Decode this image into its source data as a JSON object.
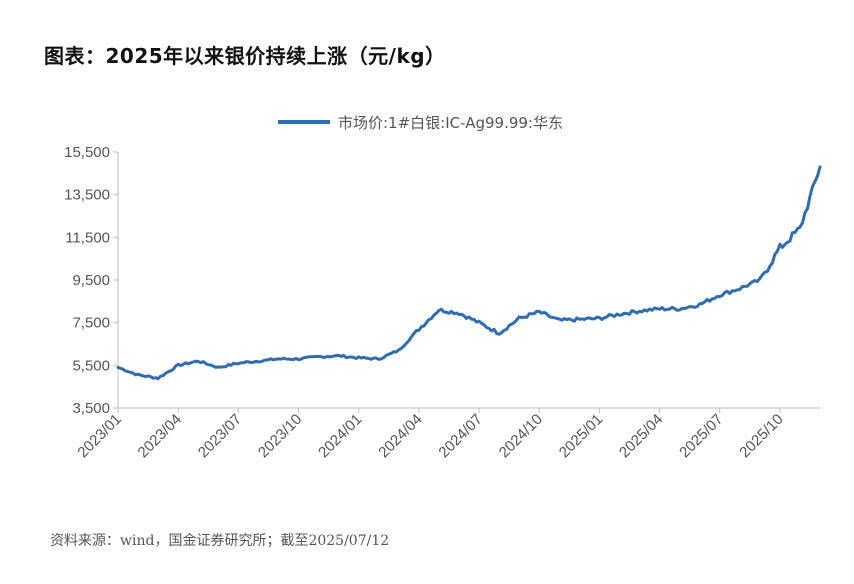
{
  "title": "图表：2025年以来银价持续上涨（元/kg）",
  "source": "资料来源：wind，国金证券研究所；截至2025/07/12",
  "colors": {
    "series": "#2e6db4",
    "axis": "#bfbfbf",
    "text": "#555555"
  },
  "chart_data": {
    "type": "line",
    "ylim": [
      3500,
      15500
    ],
    "yticks": [
      "3,500",
      "5,500",
      "7,500",
      "9,500",
      "11,500",
      "13,500",
      "15,500"
    ],
    "ytick_values": [
      3500,
      5500,
      7500,
      9500,
      11500,
      13500,
      15500
    ],
    "xticks": [
      "2023/01",
      "2023/04",
      "2023/07",
      "2023/10",
      "2024/01",
      "2024/04",
      "2024/07",
      "2024/10",
      "2025/01",
      "2025/04",
      "2025/07",
      "2025/10"
    ],
    "grid": false,
    "legend_position": "top-center",
    "series": [
      {
        "name": "市场价:1#白银:IC-Ag99.99:华东",
        "x": [
          "2023/01",
          "2023/02",
          "2023/03",
          "2023/04",
          "2023/05",
          "2023/06",
          "2023/07",
          "2023/08",
          "2023/09",
          "2023/10",
          "2023/11",
          "2023/12",
          "2024/01",
          "2024/02",
          "2024/03",
          "2024/04",
          "2024/05",
          "2024/06",
          "2024/07",
          "2024/08",
          "2024/09",
          "2024/10",
          "2024/11",
          "2024/12",
          "2025/01",
          "2025/02",
          "2025/03",
          "2025/04",
          "2025/05",
          "2025/06",
          "2025/07",
          "2025/08",
          "2025/09",
          "2025/10",
          "2025/11",
          "2025/12"
        ],
        "values": [
          5400,
          5050,
          4900,
          5500,
          5700,
          5400,
          5600,
          5700,
          5800,
          5800,
          5900,
          5950,
          5850,
          5800,
          6200,
          7200,
          8100,
          7950,
          7500,
          7000,
          7700,
          8000,
          7600,
          7650,
          7700,
          7900,
          8050,
          8150,
          8150,
          8350,
          8800,
          9100,
          9500,
          11000,
          11900,
          14800
        ]
      }
    ]
  }
}
